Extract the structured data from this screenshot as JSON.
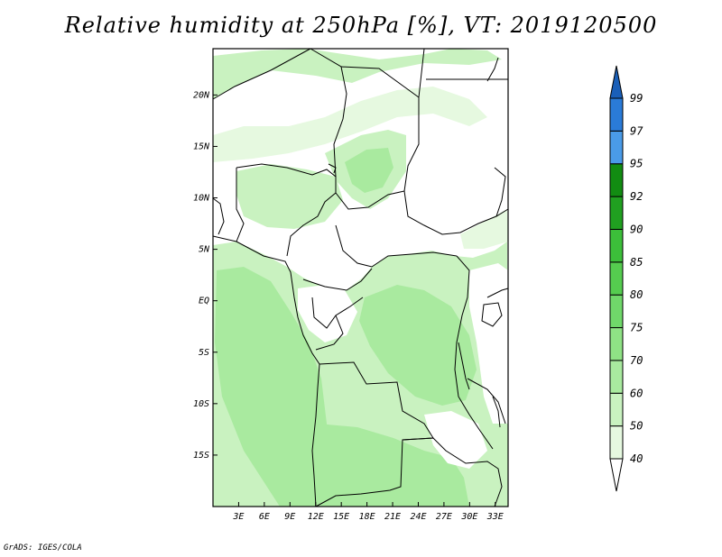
{
  "title": "Relative humidity at 250hPa [%], VT: 2019120500",
  "credit": "GrADS: IGES/COLA",
  "map": {
    "lon_range": [
      0,
      34.5
    ],
    "lat_range": [
      -20,
      24.5
    ],
    "lat_ticks": [
      {
        "value": 20,
        "label": "20N"
      },
      {
        "value": 15,
        "label": "15N"
      },
      {
        "value": 10,
        "label": "10N"
      },
      {
        "value": 5,
        "label": "5N"
      },
      {
        "value": 0,
        "label": "EQ"
      },
      {
        "value": -5,
        "label": "5S"
      },
      {
        "value": -10,
        "label": "10S"
      },
      {
        "value": -15,
        "label": "15S"
      }
    ],
    "lon_ticks": [
      {
        "value": 3,
        "label": "3E"
      },
      {
        "value": 6,
        "label": "6E"
      },
      {
        "value": 9,
        "label": "9E"
      },
      {
        "value": 12,
        "label": "12E"
      },
      {
        "value": 15,
        "label": "15E"
      },
      {
        "value": 18,
        "label": "18E"
      },
      {
        "value": 21,
        "label": "21E"
      },
      {
        "value": 24,
        "label": "24E"
      },
      {
        "value": 27,
        "label": "27E"
      },
      {
        "value": 30,
        "label": "30E"
      },
      {
        "value": 33,
        "label": "33E"
      }
    ]
  },
  "colorbar": {
    "levels": [
      "40",
      "50",
      "60",
      "70",
      "75",
      "80",
      "85",
      "90",
      "92",
      "95",
      "97",
      "99"
    ],
    "colors": [
      "#ffffff",
      "#e6f9e0",
      "#c9f2c0",
      "#a9ea9f",
      "#8fe285",
      "#70d86a",
      "#55cc4f",
      "#3cbf3a",
      "#20a020",
      "#128c12",
      "#4a9be8",
      "#2a7bd8",
      "#1a5fb8"
    ]
  }
}
